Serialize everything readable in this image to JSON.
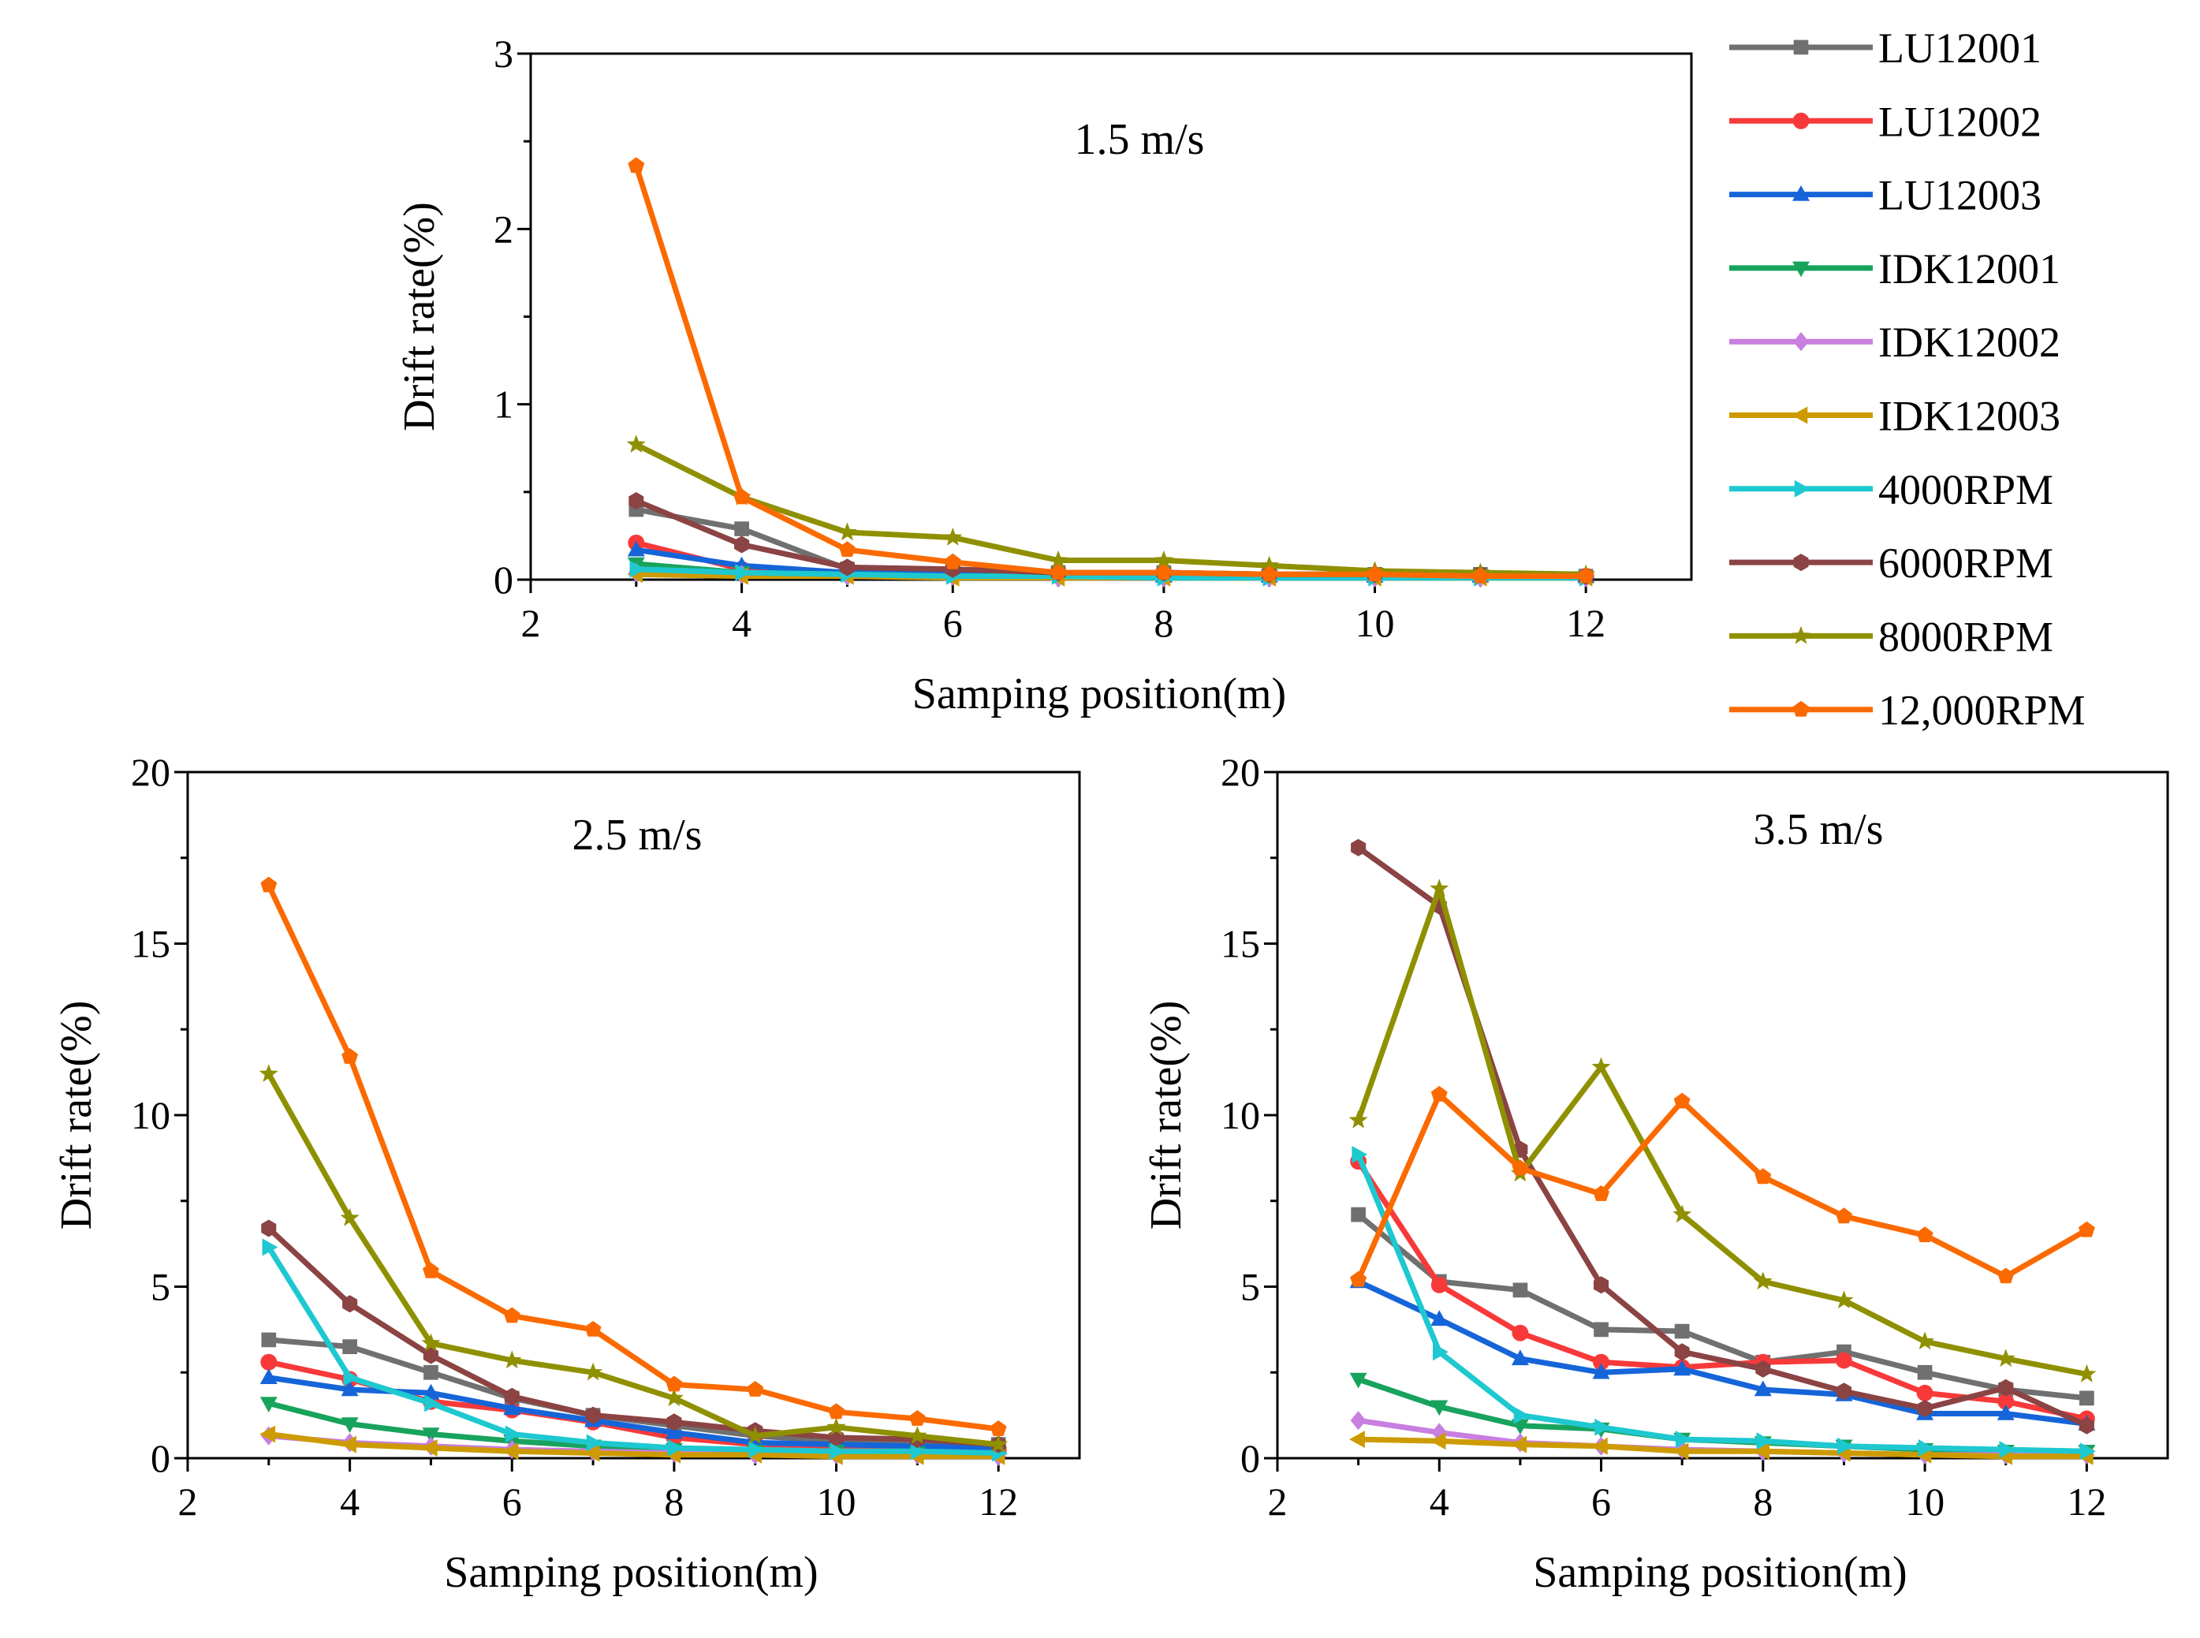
{
  "chart_data": [
    {
      "type": "line",
      "title": "1.5 m/s",
      "xlabel": "Samping position(m)",
      "ylabel": "Drift rate(%)",
      "xlim": [
        2,
        13
      ],
      "ylim": [
        0,
        3
      ],
      "xticks": [
        2,
        4,
        6,
        8,
        10,
        12
      ],
      "yticks": [
        0,
        1,
        2,
        3
      ],
      "x": [
        3,
        4,
        5,
        6,
        7,
        8,
        9,
        10,
        11,
        12
      ],
      "series": [
        {
          "name": "LU12001",
          "values": [
            0.4,
            0.29,
            0.06,
            0.05,
            0.04,
            0.04,
            0.03,
            0.03,
            0.03,
            0.02
          ]
        },
        {
          "name": "LU12002",
          "values": [
            0.21,
            0.06,
            0.04,
            0.03,
            0.03,
            0.03,
            0.02,
            0.02,
            0.02,
            0.02
          ]
        },
        {
          "name": "LU12003",
          "values": [
            0.17,
            0.08,
            0.04,
            0.03,
            0.03,
            0.02,
            0.02,
            0.02,
            0.02,
            0.02
          ]
        },
        {
          "name": "IDK12001",
          "values": [
            0.09,
            0.04,
            0.03,
            0.02,
            0.02,
            0.02,
            0.02,
            0.01,
            0.01,
            0.01
          ]
        },
        {
          "name": "IDK12002",
          "values": [
            0.04,
            0.03,
            0.02,
            0.02,
            0.01,
            0.01,
            0.01,
            0.01,
            0.01,
            0.01
          ]
        },
        {
          "name": "IDK12003",
          "values": [
            0.03,
            0.02,
            0.02,
            0.01,
            0.01,
            0.01,
            0.01,
            0.01,
            0.01,
            0.01
          ]
        },
        {
          "name": "4000RPM",
          "values": [
            0.06,
            0.04,
            0.03,
            0.02,
            0.02,
            0.01,
            0.01,
            0.01,
            0.01,
            0.01
          ]
        },
        {
          "name": "6000RPM",
          "values": [
            0.45,
            0.2,
            0.07,
            0.06,
            0.04,
            0.04,
            0.03,
            0.03,
            0.03,
            0.02
          ]
        },
        {
          "name": "8000RPM",
          "values": [
            0.77,
            0.47,
            0.27,
            0.24,
            0.11,
            0.11,
            0.08,
            0.05,
            0.04,
            0.03
          ]
        },
        {
          "name": "12,000RPM",
          "values": [
            2.36,
            0.47,
            0.17,
            0.1,
            0.04,
            0.04,
            0.03,
            0.03,
            0.02,
            0.02
          ]
        }
      ]
    },
    {
      "type": "line",
      "title": "2.5 m/s",
      "xlabel": "Samping position(m)",
      "ylabel": "Drift rate(%)",
      "xlim": [
        2,
        13
      ],
      "ylim": [
        0,
        20
      ],
      "xticks": [
        2,
        4,
        6,
        8,
        10,
        12
      ],
      "yticks": [
        0,
        5,
        10,
        15,
        20
      ],
      "x": [
        3,
        4,
        5,
        6,
        7,
        8,
        9,
        10,
        11,
        12
      ],
      "series": [
        {
          "name": "LU12001",
          "values": [
            3.45,
            3.25,
            2.5,
            1.75,
            1.25,
            0.95,
            0.65,
            0.5,
            0.45,
            0.4
          ]
        },
        {
          "name": "LU12002",
          "values": [
            2.8,
            2.3,
            1.65,
            1.4,
            1.05,
            0.6,
            0.4,
            0.35,
            0.3,
            0.25
          ]
        },
        {
          "name": "LU12003",
          "values": [
            2.35,
            2.0,
            1.9,
            1.45,
            1.1,
            0.75,
            0.45,
            0.4,
            0.35,
            0.3
          ]
        },
        {
          "name": "IDK12001",
          "values": [
            1.6,
            1.0,
            0.7,
            0.5,
            0.35,
            0.25,
            0.2,
            0.2,
            0.15,
            0.15
          ]
        },
        {
          "name": "IDK12002",
          "values": [
            0.65,
            0.45,
            0.35,
            0.25,
            0.2,
            0.15,
            0.1,
            0.1,
            0.1,
            0.05
          ]
        },
        {
          "name": "IDK12003",
          "values": [
            0.7,
            0.4,
            0.3,
            0.2,
            0.15,
            0.1,
            0.1,
            0.05,
            0.05,
            0.05
          ]
        },
        {
          "name": "4000RPM",
          "values": [
            6.15,
            2.35,
            1.6,
            0.7,
            0.45,
            0.3,
            0.25,
            0.2,
            0.2,
            0.15
          ]
        },
        {
          "name": "6000RPM",
          "values": [
            6.7,
            4.5,
            3.0,
            1.8,
            1.25,
            1.05,
            0.8,
            0.6,
            0.55,
            0.4
          ]
        },
        {
          "name": "8000RPM",
          "values": [
            11.2,
            7.0,
            3.35,
            2.85,
            2.5,
            1.75,
            0.65,
            0.9,
            0.65,
            0.4
          ]
        },
        {
          "name": "12,000RPM",
          "values": [
            16.7,
            11.7,
            5.45,
            4.15,
            3.75,
            2.15,
            2.0,
            1.35,
            1.15,
            0.85
          ]
        }
      ]
    },
    {
      "type": "line",
      "title": "3.5 m/s",
      "xlabel": "Samping position(m)",
      "ylabel": "Drift rate(%)",
      "xlim": [
        2,
        13
      ],
      "ylim": [
        0,
        20
      ],
      "xticks": [
        2,
        4,
        6,
        8,
        10,
        12
      ],
      "yticks": [
        0,
        5,
        10,
        15,
        20
      ],
      "x": [
        3,
        4,
        5,
        6,
        7,
        8,
        9,
        10,
        11,
        12
      ],
      "series": [
        {
          "name": "LU12001",
          "values": [
            7.1,
            5.15,
            4.9,
            3.75,
            3.7,
            2.8,
            3.1,
            2.5,
            2.0,
            1.75
          ]
        },
        {
          "name": "LU12002",
          "values": [
            8.65,
            5.05,
            3.65,
            2.8,
            2.65,
            2.8,
            2.85,
            1.9,
            1.65,
            1.15
          ]
        },
        {
          "name": "LU12003",
          "values": [
            5.15,
            4.05,
            2.9,
            2.5,
            2.6,
            2.0,
            1.85,
            1.3,
            1.3,
            1.0
          ]
        },
        {
          "name": "IDK12001",
          "values": [
            2.3,
            1.5,
            0.95,
            0.85,
            0.55,
            0.45,
            0.35,
            0.25,
            0.2,
            0.2
          ]
        },
        {
          "name": "IDK12002",
          "values": [
            1.1,
            0.75,
            0.45,
            0.35,
            0.25,
            0.2,
            0.15,
            0.1,
            0.1,
            0.1
          ]
        },
        {
          "name": "IDK12003",
          "values": [
            0.55,
            0.5,
            0.4,
            0.35,
            0.2,
            0.2,
            0.15,
            0.1,
            0.05,
            0.05
          ]
        },
        {
          "name": "4000RPM",
          "values": [
            8.85,
            3.1,
            1.25,
            0.9,
            0.55,
            0.5,
            0.35,
            0.3,
            0.25,
            0.2
          ]
        },
        {
          "name": "6000RPM",
          "values": [
            17.8,
            16.1,
            9.0,
            5.05,
            3.1,
            2.6,
            1.95,
            1.45,
            2.05,
            0.95
          ]
        },
        {
          "name": "8000RPM",
          "values": [
            9.85,
            16.6,
            8.3,
            11.4,
            7.1,
            5.15,
            4.6,
            3.4,
            2.9,
            2.45
          ]
        },
        {
          "name": "12,000RPM",
          "values": [
            5.2,
            10.6,
            8.45,
            7.7,
            10.4,
            8.2,
            7.05,
            6.5,
            5.3,
            6.65
          ]
        }
      ]
    }
  ],
  "legend": {
    "placement": "top-right",
    "entries": [
      {
        "name": "LU12001",
        "color": "#707070",
        "marker": "square"
      },
      {
        "name": "LU12002",
        "color": "#f8393a",
        "marker": "circle"
      },
      {
        "name": "LU12003",
        "color": "#1565d8",
        "marker": "triangle-up"
      },
      {
        "name": "IDK12001",
        "color": "#18a35d",
        "marker": "triangle-down"
      },
      {
        "name": "IDK12002",
        "color": "#c87fe0",
        "marker": "diamond"
      },
      {
        "name": "IDK12003",
        "color": "#cd9b00",
        "marker": "triangle-left"
      },
      {
        "name": "4000RPM",
        "color": "#1ec8d0",
        "marker": "triangle-right"
      },
      {
        "name": "6000RPM",
        "color": "#8b4343",
        "marker": "hexagon"
      },
      {
        "name": "8000RPM",
        "color": "#8f9000",
        "marker": "star"
      },
      {
        "name": "12,000RPM",
        "color": "#fb6a00",
        "marker": "pentagon"
      }
    ]
  }
}
